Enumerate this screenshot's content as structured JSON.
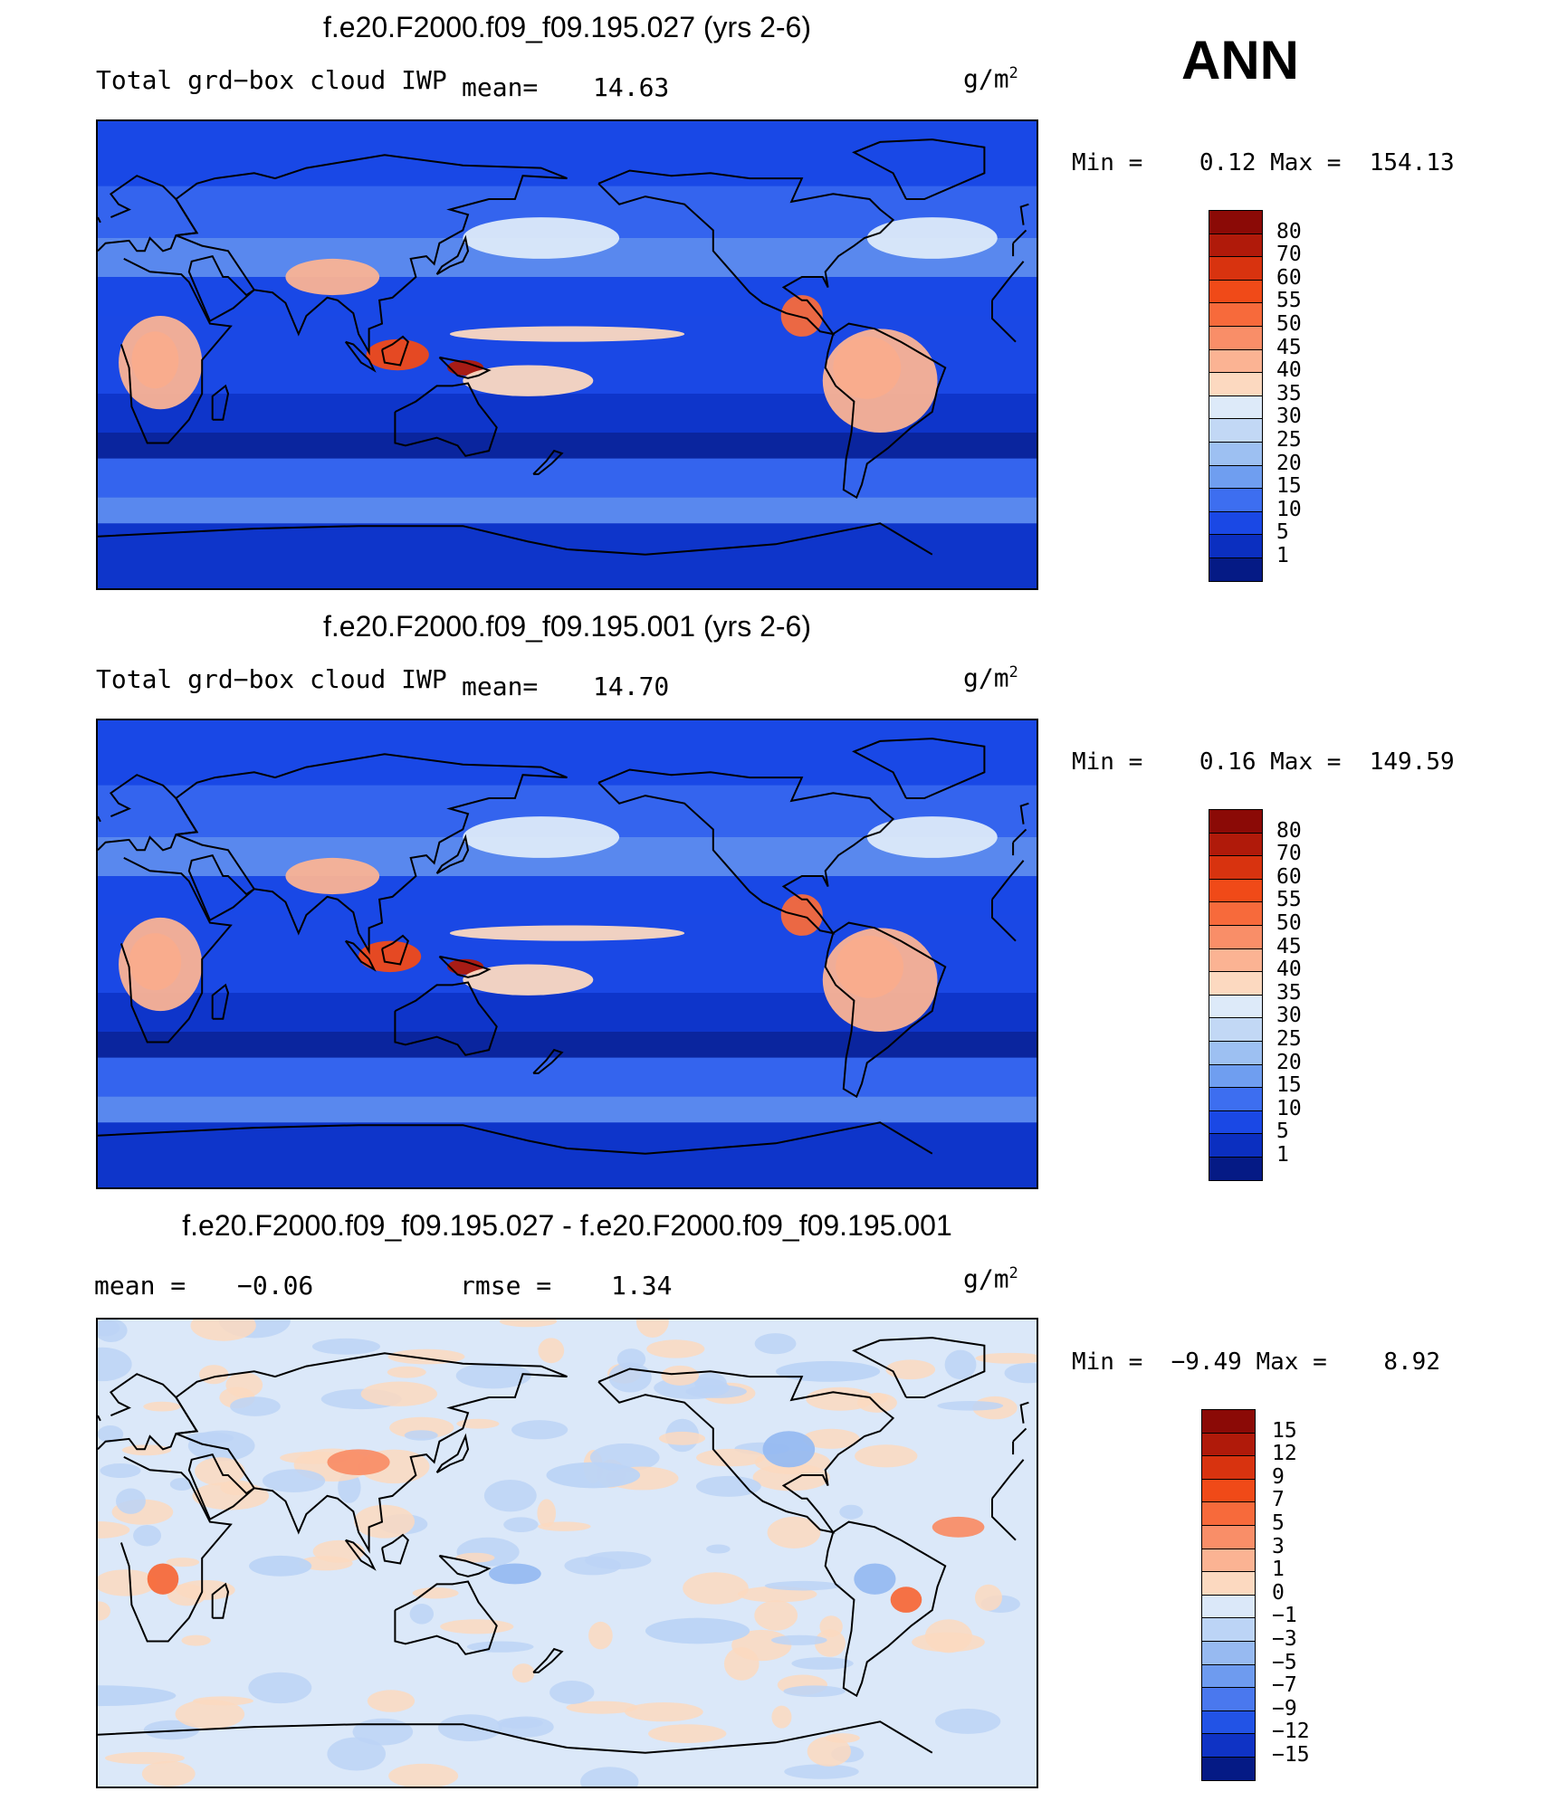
{
  "season": "ANN",
  "panels": [
    {
      "title": "f.e20.F2000.f09_f09.195.027 (yrs 2-6)",
      "variable": "Total grd−box cloud IWP",
      "stat1_label": "mean=",
      "stat1_value": "14.63",
      "units": "g/m",
      "units_sup": "2",
      "minmax": "Min =    0.12 Max =  154.13",
      "kind": "abs",
      "colorbar": {
        "labels": [
          "80",
          "70",
          "60",
          "55",
          "50",
          "45",
          "40",
          "35",
          "30",
          "25",
          "20",
          "15",
          "10",
          "5",
          "1"
        ],
        "colors": [
          "#8b0a06",
          "#b01a0a",
          "#d8330f",
          "#f04a18",
          "#f76a3b",
          "#f98e68",
          "#fbb393",
          "#fcd9c0",
          "#ddeaf9",
          "#c2d8f5",
          "#9dc0f2",
          "#6f9ef0",
          "#3d6ef0",
          "#1a48e5",
          "#0b2fc0",
          "#051a85"
        ]
      },
      "blobs": [
        {
          "name": "central-africa-iwp-max",
          "lon": 22,
          "lat": -2,
          "rx": 9,
          "ry": 11,
          "level": 13
        },
        {
          "name": "central-africa-outer",
          "lon": 24,
          "lat": -3,
          "rx": 16,
          "ry": 18,
          "level": 9
        },
        {
          "name": "maritime-continent-max",
          "lon": 115,
          "lat": 0,
          "rx": 12,
          "ry": 6,
          "level": 12
        },
        {
          "name": "new-guinea-max",
          "lon": 141,
          "lat": -5,
          "rx": 7,
          "ry": 3,
          "level": 14
        },
        {
          "name": "amazon-max",
          "lon": -65,
          "lat": -5,
          "rx": 13,
          "ry": 12,
          "level": 13
        },
        {
          "name": "amazon-outer",
          "lon": -60,
          "lat": -10,
          "rx": 22,
          "ry": 20,
          "level": 9
        },
        {
          "name": "central-america",
          "lon": -90,
          "lat": 15,
          "rx": 8,
          "ry": 8,
          "level": 11
        },
        {
          "name": "tibet-plateau",
          "lon": 90,
          "lat": 30,
          "rx": 18,
          "ry": 7,
          "level": 9
        },
        {
          "name": "itcz-pacific",
          "lon": 180,
          "lat": 8,
          "rx": 45,
          "ry": 3,
          "level": 8
        },
        {
          "name": "spcz",
          "lon": 165,
          "lat": -10,
          "rx": 25,
          "ry": 6,
          "level": 8
        },
        {
          "name": "north-atlantic-storm",
          "lon": -40,
          "lat": 45,
          "rx": 25,
          "ry": 8,
          "level": 7
        },
        {
          "name": "north-pacific-storm",
          "lon": 170,
          "lat": 45,
          "rx": 30,
          "ry": 8,
          "level": 7
        }
      ]
    },
    {
      "title": "f.e20.F2000.f09_f09.195.001 (yrs 2-6)",
      "variable": "Total grd−box cloud IWP",
      "stat1_label": "mean=",
      "stat1_value": "14.70",
      "units": "g/m",
      "units_sup": "2",
      "minmax": "Min =    0.16 Max =  149.59",
      "kind": "abs",
      "colorbar": {
        "labels": [
          "80",
          "70",
          "60",
          "55",
          "50",
          "45",
          "40",
          "35",
          "30",
          "25",
          "20",
          "15",
          "10",
          "5",
          "1"
        ],
        "colors": [
          "#8b0a06",
          "#b01a0a",
          "#d8330f",
          "#f04a18",
          "#f76a3b",
          "#f98e68",
          "#fbb393",
          "#fcd9c0",
          "#ddeaf9",
          "#c2d8f5",
          "#9dc0f2",
          "#6f9ef0",
          "#3d6ef0",
          "#1a48e5",
          "#0b2fc0",
          "#051a85"
        ]
      },
      "blobs": [
        {
          "name": "central-africa-iwp-max",
          "lon": 22,
          "lat": -3,
          "rx": 10,
          "ry": 11,
          "level": 13
        },
        {
          "name": "central-africa-outer",
          "lon": 24,
          "lat": -4,
          "rx": 16,
          "ry": 18,
          "level": 9
        },
        {
          "name": "maritime-continent-max",
          "lon": 112,
          "lat": -1,
          "rx": 12,
          "ry": 6,
          "level": 12
        },
        {
          "name": "new-guinea-max",
          "lon": 141,
          "lat": -5,
          "rx": 7,
          "ry": 3,
          "level": 14
        },
        {
          "name": "amazon-max",
          "lon": -64,
          "lat": -5,
          "rx": 13,
          "ry": 12,
          "level": 13
        },
        {
          "name": "amazon-outer",
          "lon": -60,
          "lat": -10,
          "rx": 22,
          "ry": 20,
          "level": 9
        },
        {
          "name": "central-america",
          "lon": -90,
          "lat": 15,
          "rx": 8,
          "ry": 8,
          "level": 11
        },
        {
          "name": "tibet-plateau",
          "lon": 90,
          "lat": 30,
          "rx": 18,
          "ry": 7,
          "level": 9
        },
        {
          "name": "itcz-pacific",
          "lon": 180,
          "lat": 8,
          "rx": 45,
          "ry": 3,
          "level": 8
        },
        {
          "name": "spcz",
          "lon": 165,
          "lat": -10,
          "rx": 25,
          "ry": 6,
          "level": 8
        },
        {
          "name": "north-atlantic-storm",
          "lon": -40,
          "lat": 45,
          "rx": 25,
          "ry": 8,
          "level": 7
        },
        {
          "name": "north-pacific-storm",
          "lon": 170,
          "lat": 45,
          "rx": 30,
          "ry": 8,
          "level": 7
        }
      ]
    },
    {
      "title": "f.e20.F2000.f09_f09.195.027 - f.e20.F2000.f09_f09.195.001",
      "variable": "",
      "stat1_label": "mean =",
      "stat1_value": "−0.06",
      "stat2_label": "rmse =",
      "stat2_value": "1.34",
      "units": "g/m",
      "units_sup": "2",
      "minmax": "Min =  −9.49 Max =    8.92",
      "kind": "diff",
      "colorbar": {
        "labels": [
          "15",
          "12",
          "9",
          "7",
          "5",
          "3",
          "1",
          "0",
          "−1",
          "−3",
          "−5",
          "−7",
          "−9",
          "−12",
          "−15"
        ],
        "colors": [
          "#8b0a06",
          "#b01a0a",
          "#d8330f",
          "#f04a18",
          "#f76a3b",
          "#f98e68",
          "#fbb393",
          "#fcd9c0",
          "#dbe8f9",
          "#bcd4f6",
          "#97baf1",
          "#6e9bef",
          "#4a78ee",
          "#2253e6",
          "#0f33c5",
          "#051a85"
        ]
      },
      "blobs": [
        {
          "name": "new-guinea-positive",
          "lon": 160,
          "lat": -8,
          "rx": 10,
          "ry": 4,
          "level": 5
        },
        {
          "name": "north-america-positive",
          "lon": -95,
          "lat": 40,
          "rx": 10,
          "ry": 7,
          "level": 5
        },
        {
          "name": "south-america-positive",
          "lon": -62,
          "lat": -10,
          "rx": 8,
          "ry": 6,
          "level": 5
        },
        {
          "name": "south-america-negative",
          "lon": -50,
          "lat": -18,
          "rx": 6,
          "ry": 5,
          "level": 11
        },
        {
          "name": "africa-negative",
          "lon": 25,
          "lat": -10,
          "rx": 6,
          "ry": 6,
          "level": 11
        },
        {
          "name": "asia-negative",
          "lon": 100,
          "lat": 35,
          "rx": 12,
          "ry": 5,
          "level": 10
        },
        {
          "name": "indian-ocean-positive",
          "lon": 70,
          "lat": -5,
          "rx": 12,
          "ry": 4,
          "level": 6
        },
        {
          "name": "south-pacific-positive",
          "lon": -130,
          "lat": -30,
          "rx": 20,
          "ry": 5,
          "level": 6
        },
        {
          "name": "north-pacific-positive",
          "lon": -170,
          "lat": 30,
          "rx": 18,
          "ry": 5,
          "level": 6
        },
        {
          "name": "atlantic-negative",
          "lon": -30,
          "lat": 10,
          "rx": 10,
          "ry": 4,
          "level": 10
        },
        {
          "name": "southern-ocean-positive",
          "lon": 0,
          "lat": -55,
          "rx": 30,
          "ry": 4,
          "level": 6
        },
        {
          "name": "arctic-positive",
          "lon": -80,
          "lat": 70,
          "rx": 20,
          "ry": 4,
          "level": 6
        }
      ]
    }
  ]
}
